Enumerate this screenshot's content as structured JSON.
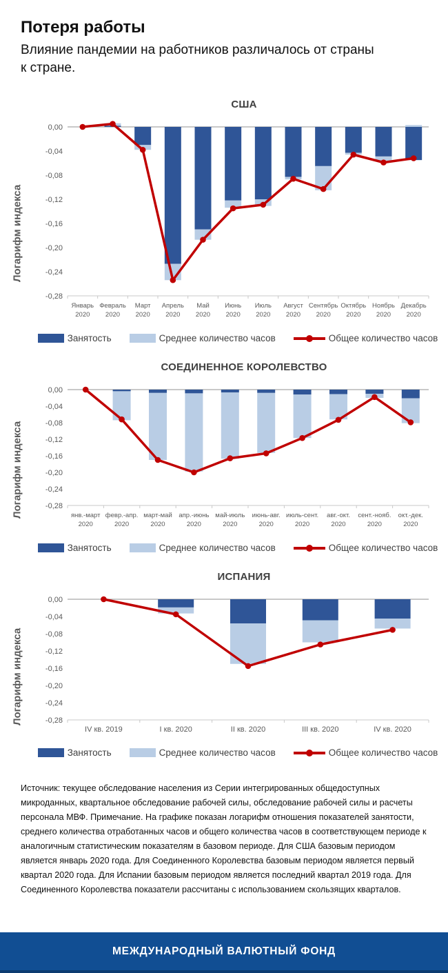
{
  "header": {
    "title": "Потеря работы",
    "subtitle": "Влияние пандемии на работников различалось от страны\nк стране."
  },
  "colors": {
    "employment": "#2F5597",
    "avg_hours": "#B9CDE5",
    "total_hours": "#C00000",
    "banner": "#114E93",
    "zero_line": "#A6A6A6",
    "axis_line": "#C8C8C8",
    "axis_text": "#595959",
    "chart_title": "#404040"
  },
  "y_axis": {
    "title": "Логарифм индекса",
    "max": 0,
    "min": -0.28,
    "step": -0.04,
    "tick_labels": [
      "0,00",
      "-0,04",
      "-0,08",
      "-0,12",
      "-0,16",
      "-0,20",
      "-0,24",
      "-0,28"
    ]
  },
  "legend": {
    "employment": "Занятость",
    "avg_hours": "Среднее количество часов",
    "total_hours": "Общее количество часов"
  },
  "chart_data": [
    {
      "type": "bar+line",
      "country": "США",
      "year_label": "2020",
      "categories": [
        "Январь",
        "Февраль",
        "Март",
        "Апрель",
        "Май",
        "Июнь",
        "Июль",
        "Август",
        "Сентябрь",
        "Октябрь",
        "Ноябрь",
        "Декабрь"
      ],
      "ylim": [
        0,
        -0.28
      ],
      "series": [
        {
          "name": "Занятость",
          "values": [
            0,
            0.002,
            -0.03,
            -0.227,
            -0.17,
            -0.122,
            -0.12,
            -0.083,
            -0.065,
            -0.043,
            -0.049,
            -0.055
          ]
        },
        {
          "name": "Среднее количество часов",
          "values": [
            0,
            0.004,
            -0.008,
            -0.027,
            -0.017,
            -0.012,
            -0.011,
            -0.004,
            -0.04,
            -0.003,
            -0.007,
            0.003
          ]
        },
        {
          "name": "Общее количество часов",
          "values": [
            0,
            0.005,
            -0.038,
            -0.254,
            -0.187,
            -0.135,
            -0.129,
            -0.086,
            -0.103,
            -0.046,
            -0.059,
            -0.052
          ]
        }
      ]
    },
    {
      "type": "bar+line",
      "country": "СОЕДИНЕННОЕ КОРОЛЕВСТВО",
      "year_label": "2020",
      "categories": [
        "янв.-март",
        "февр.-апр.",
        "март-май",
        "апр.-июнь",
        "май-июль",
        "июнь-авг.",
        "июль-сент.",
        "авг.-окт.",
        "сент.-нояб.",
        "окт.-дек."
      ],
      "ylim": [
        0,
        -0.28
      ],
      "series": [
        {
          "name": "Занятость",
          "values": [
            0,
            -0.004,
            -0.008,
            -0.009,
            -0.007,
            -0.008,
            -0.012,
            -0.011,
            -0.01,
            -0.021
          ]
        },
        {
          "name": "Среднее количество часов",
          "values": [
            0,
            -0.07,
            -0.162,
            -0.189,
            -0.16,
            -0.145,
            -0.105,
            -0.061,
            -0.01,
            -0.06
          ]
        },
        {
          "name": "Общее количество часов",
          "values": [
            0,
            -0.072,
            -0.17,
            -0.2,
            -0.166,
            -0.154,
            -0.117,
            -0.073,
            -0.018,
            -0.079
          ]
        }
      ]
    },
    {
      "type": "bar+line",
      "country": "ИСПАНИЯ",
      "year_label": null,
      "categories": [
        "IV кв. 2019",
        "I кв. 2020",
        "II кв. 2020",
        "III кв. 2020",
        "IV кв. 2020"
      ],
      "ylim": [
        0,
        -0.28
      ],
      "series": [
        {
          "name": "Занятость",
          "values": [
            0,
            -0.019,
            -0.056,
            -0.049,
            -0.045
          ]
        },
        {
          "name": "Среднее количество часов",
          "values": [
            0,
            -0.014,
            -0.094,
            -0.051,
            -0.023
          ]
        },
        {
          "name": "Общее количество часов",
          "values": [
            0,
            -0.035,
            -0.155,
            -0.105,
            -0.071
          ]
        }
      ]
    }
  ],
  "footer": {
    "note": "Источник: текущее обследование населения из Серии интегрированных общедоступных микроданных, квартальное обследование рабочей силы, обследование рабочей силы и расчеты персонала МВФ. Примечание. На графике показан логарифм отношения показателей занятости, среднего количества отработанных часов и общего количества часов в соответствующем периоде к аналогичным статистическим показателям в базовом периоде. Для США базовым периодом является январь 2020 года. Для Соединенного Королевства базовым периодом является первый квартал 2020 года. Для Испании базовым периодом является последний квартал 2019 года. Для Соединенного Королевства показатели рассчитаны с использованием скользящих кварталов."
  },
  "banner": {
    "text": "МЕЖДУНАРОДНЫЙ ВАЛЮТНЫЙ ФОНД"
  }
}
